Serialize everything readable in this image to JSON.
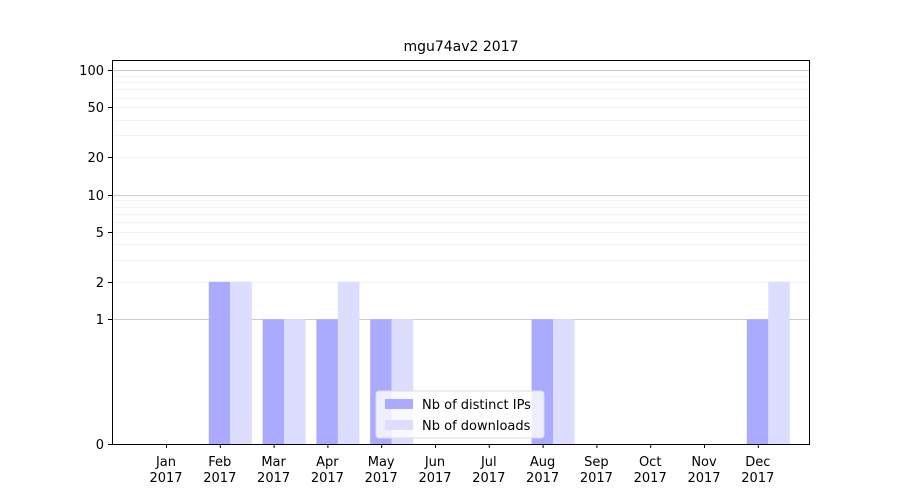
{
  "chart_data": {
    "type": "bar",
    "title": "mgu74av2 2017",
    "xlabel": "",
    "ylabel": "",
    "y_scale": "symlog",
    "y_ticks": [
      0,
      1,
      2,
      5,
      10,
      20,
      50,
      100
    ],
    "ylim": [
      0,
      120
    ],
    "grid": "horizontal",
    "legend_position": "lower-center",
    "categories": [
      [
        "Jan",
        "2017"
      ],
      [
        "Feb",
        "2017"
      ],
      [
        "Mar",
        "2017"
      ],
      [
        "Apr",
        "2017"
      ],
      [
        "May",
        "2017"
      ],
      [
        "Jun",
        "2017"
      ],
      [
        "Jul",
        "2017"
      ],
      [
        "Aug",
        "2017"
      ],
      [
        "Sep",
        "2017"
      ],
      [
        "Oct",
        "2017"
      ],
      [
        "Nov",
        "2017"
      ],
      [
        "Dec",
        "2017"
      ]
    ],
    "series": [
      {
        "name": "Nb of distinct IPs",
        "color": "#aaaaff",
        "values": [
          0,
          2,
          1,
          1,
          1,
          0,
          0,
          1,
          0,
          0,
          0,
          1
        ]
      },
      {
        "name": "Nb of downloads",
        "color": "#ddddff",
        "values": [
          0,
          2,
          1,
          2,
          1,
          0,
          0,
          1,
          0,
          0,
          0,
          2
        ]
      }
    ]
  }
}
